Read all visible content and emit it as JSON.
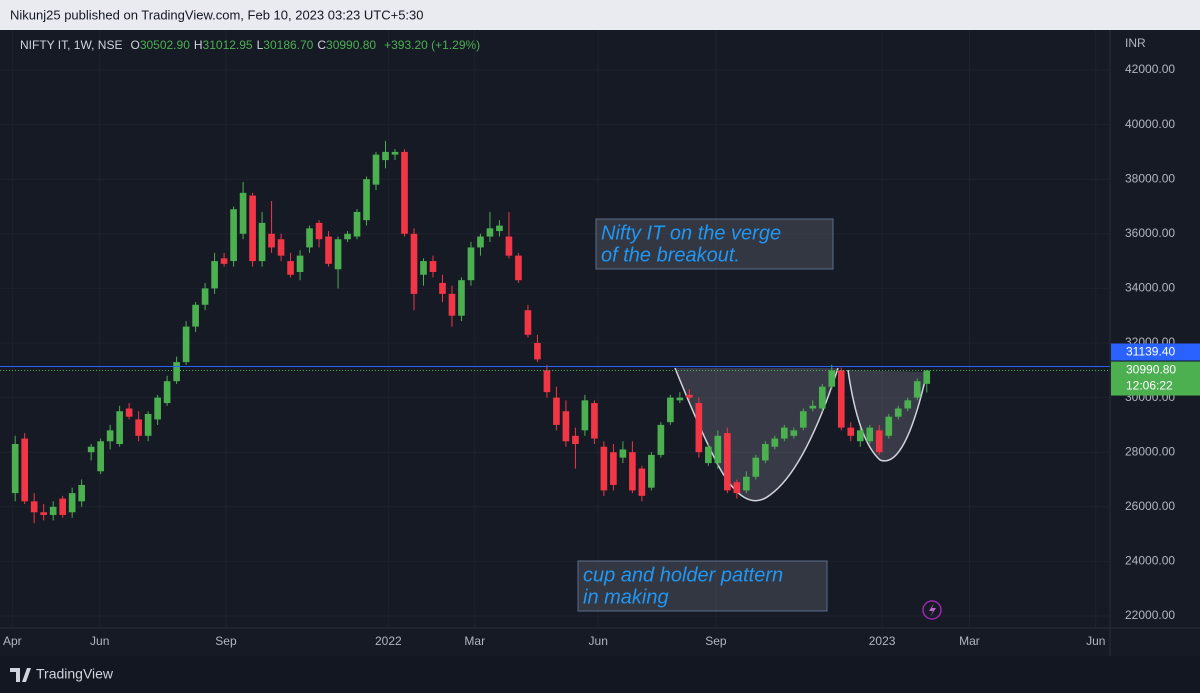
{
  "header": "Nikunj25 published on TradingView.com, Feb 10, 2023 03:23 UTC+5:30",
  "footer": "TradingView",
  "chart_data": {
    "type": "candlestick",
    "legend": {
      "symbol": "NIFTY IT, 1W, NSE",
      "o": "O",
      "open": "30502.90",
      "h": "H",
      "high": "31012.95",
      "l": "L",
      "low": "30186.70",
      "c": "C",
      "close": "30990.80",
      "change": "+393.20 (+1.29%)"
    },
    "y_unit": "INR",
    "up_color": "#4caf50",
    "down_color": "#f23645",
    "x": [
      0,
      1,
      2,
      3,
      4,
      5,
      6,
      7,
      8,
      9,
      10,
      11,
      12,
      13,
      14,
      15,
      16,
      17,
      18,
      19,
      20,
      21,
      22,
      23,
      24,
      25,
      26,
      27,
      28,
      29,
      30,
      31,
      32,
      33,
      34,
      35,
      36,
      37,
      38,
      39,
      40,
      41,
      42,
      43,
      44,
      45,
      46,
      47,
      48,
      49,
      50,
      51,
      52,
      53,
      54,
      55,
      56,
      57,
      58,
      59,
      60,
      61,
      62,
      63,
      64,
      65,
      66,
      67,
      68,
      69,
      70,
      71,
      72,
      73,
      74,
      75,
      76,
      77,
      78,
      79,
      80,
      81,
      82,
      83,
      84,
      85,
      86,
      87,
      88,
      89,
      90,
      91,
      92,
      93,
      94,
      95,
      96
    ],
    "open": [
      26500,
      28500,
      26200,
      25800,
      25700,
      26300,
      25800,
      26200,
      28000,
      27300,
      28400,
      28300,
      29600,
      29200,
      28600,
      29200,
      29800,
      30600,
      31300,
      32600,
      33400,
      34000,
      35100,
      35000,
      36000,
      37400,
      35000,
      36000,
      35800,
      35000,
      34600,
      35500,
      36400,
      35900,
      34700,
      35800,
      35900,
      36500,
      37800,
      38700,
      38900,
      39000,
      36000,
      34500,
      35000,
      34200,
      33800,
      33000,
      34300,
      35500,
      35900,
      36100,
      35900,
      35200,
      33200,
      32000,
      31000,
      30000,
      29500,
      28600,
      28800,
      29800,
      28200,
      28000,
      27800,
      28000,
      27400,
      26700,
      27900,
      29100,
      29900,
      30100,
      29800,
      27600,
      27600,
      28700,
      26900,
      26600,
      27100,
      27700,
      28200,
      28500,
      28600,
      28900,
      29600,
      29600,
      30400,
      31000,
      28900,
      28400,
      28400,
      28800,
      28600,
      29300,
      29600,
      30000,
      30502.9
    ],
    "high": [
      28600,
      28700,
      26500,
      26100,
      26200,
      26400,
      26700,
      27000,
      28300,
      28500,
      29000,
      29700,
      29800,
      29500,
      29500,
      30100,
      30800,
      31500,
      32800,
      33500,
      34200,
      35300,
      35300,
      37000,
      37900,
      37500,
      36800,
      37200,
      36000,
      35300,
      35400,
      36300,
      36500,
      36100,
      35900,
      36100,
      36900,
      38100,
      39000,
      39400,
      39100,
      39100,
      36200,
      35100,
      35200,
      34500,
      34100,
      34400,
      35700,
      36000,
      36800,
      36500,
      36800,
      35300,
      33400,
      32300,
      31200,
      30400,
      29900,
      28900,
      30100,
      29900,
      28400,
      28300,
      28400,
      28400,
      27500,
      28000,
      29100,
      30100,
      30200,
      30300,
      30000,
      28300,
      28800,
      28900,
      27000,
      27300,
      27900,
      28400,
      28600,
      29000,
      28900,
      29600,
      29900,
      30500,
      31200,
      31100,
      29100,
      28900,
      29000,
      29000,
      29400,
      29700,
      30000,
      30700,
      31012.95
    ],
    "low": [
      26200,
      26100,
      25400,
      25500,
      25500,
      25600,
      25600,
      26000,
      27700,
      27200,
      28100,
      28200,
      29200,
      28400,
      28400,
      29000,
      29700,
      30500,
      31200,
      32400,
      33200,
      33800,
      34800,
      34800,
      35800,
      34800,
      34800,
      35300,
      35000,
      34400,
      34300,
      35300,
      35500,
      34800,
      34000,
      35700,
      35800,
      36300,
      37600,
      38400,
      38700,
      35900,
      33200,
      34100,
      34400,
      33500,
      32600,
      32800,
      34100,
      35200,
      35700,
      35900,
      35100,
      34200,
      32200,
      31300,
      30000,
      28800,
      28200,
      27400,
      28600,
      28300,
      26400,
      26600,
      27600,
      26500,
      26200,
      26600,
      27800,
      29000,
      29800,
      29900,
      27800,
      27500,
      27400,
      26500,
      26300,
      26500,
      27000,
      27600,
      28100,
      28400,
      28500,
      28800,
      29500,
      29500,
      30300,
      28800,
      28400,
      28200,
      28300,
      27900,
      28500,
      29200,
      29500,
      29900,
      30186.7
    ],
    "close": [
      28300,
      26200,
      25800,
      25700,
      26000,
      25700,
      26500,
      26800,
      28200,
      28400,
      28800,
      29500,
      29300,
      28600,
      29400,
      30000,
      30600,
      31300,
      32600,
      33400,
      34000,
      35000,
      34900,
      36900,
      37500,
      35000,
      36400,
      35500,
      35200,
      34500,
      35200,
      36200,
      35800,
      34900,
      35800,
      36000,
      36800,
      38000,
      38900,
      39000,
      39000,
      36000,
      33800,
      35000,
      34600,
      33800,
      33000,
      34300,
      35500,
      35900,
      36200,
      36300,
      35200,
      34300,
      32300,
      31400,
      30200,
      29000,
      28400,
      28300,
      29900,
      28500,
      26600,
      26800,
      28100,
      26600,
      26400,
      27900,
      29000,
      30000,
      30000,
      30000,
      28000,
      28200,
      28600,
      26600,
      26500,
      27100,
      27800,
      28300,
      28500,
      28900,
      28800,
      29500,
      29700,
      30400,
      31000,
      28900,
      28600,
      28800,
      28900,
      28000,
      29300,
      29600,
      29900,
      30600,
      30990.8
    ],
    "xlim": [
      -1.6,
      115.3
    ],
    "xticks": [
      {
        "value": -0.3,
        "label": "Apr"
      },
      {
        "value": 8.9,
        "label": "Jun"
      },
      {
        "value": 22.2,
        "label": "Sep"
      },
      {
        "value": 39.3,
        "label": "2022"
      },
      {
        "value": 48.4,
        "label": "Mar"
      },
      {
        "value": 61.4,
        "label": "Jun"
      },
      {
        "value": 73.8,
        "label": "Sep"
      },
      {
        "value": 91.3,
        "label": "2023"
      },
      {
        "value": 100.5,
        "label": "Mar"
      },
      {
        "value": 113.8,
        "label": "Jun"
      }
    ],
    "ylim": [
      21560,
      43465
    ],
    "yticks": [
      {
        "value": 22000,
        "label": "22000.00"
      },
      {
        "value": 24000,
        "label": "24000.00"
      },
      {
        "value": 26000,
        "label": "26000.00"
      },
      {
        "value": 28000,
        "label": "28000.00"
      },
      {
        "value": 30000,
        "label": "30000.00"
      },
      {
        "value": 32000,
        "label": "32000.00"
      },
      {
        "value": 34000,
        "label": "34000.00"
      },
      {
        "value": 36000,
        "label": "36000.00"
      },
      {
        "value": 38000,
        "label": "38000.00"
      },
      {
        "value": 40000,
        "label": "40000.00"
      },
      {
        "value": 42000,
        "label": "42000.00"
      }
    ],
    "grid": true,
    "high_line": {
      "value": 31139.4,
      "label": "31139.40",
      "color": "#2962ff"
    },
    "last_price": {
      "value": 30990.8,
      "label": "30990.80",
      "countdown": "12:06:22"
    },
    "annotations": [
      [
        "Nifty IT on the verge",
        "of the breakout."
      ],
      [
        "cup and holder pattern",
        "in making"
      ]
    ]
  }
}
